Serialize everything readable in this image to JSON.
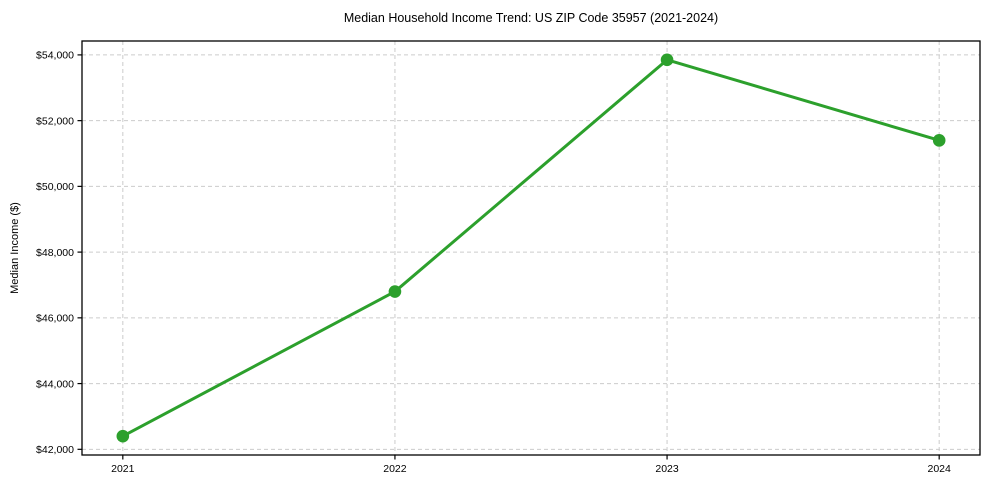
{
  "chart_data": {
    "type": "line",
    "title": "Median Household Income Trend: US ZIP Code 35957 (2021-2024)",
    "xlabel": "",
    "ylabel": "Median Income ($)",
    "categories": [
      "2021",
      "2022",
      "2023",
      "2024"
    ],
    "values": [
      42400,
      46800,
      53850,
      51400
    ],
    "yticks": {
      "values": [
        42000,
        44000,
        46000,
        48000,
        50000,
        52000,
        54000
      ],
      "labels": [
        "$42,000",
        "$44,000",
        "$46,000",
        "$48,000",
        "$50,000",
        "$52,000",
        "$54,000"
      ]
    },
    "ylim": [
      41827,
      54423
    ],
    "xlim": [
      -0.15,
      3.15
    ],
    "grid": "dashed, both axes",
    "legend": "none",
    "line_color": "#2ca02c",
    "marker": "circle",
    "grid_color": "#cccccc",
    "spine_color": "#000000",
    "background": "#ffffff"
  }
}
